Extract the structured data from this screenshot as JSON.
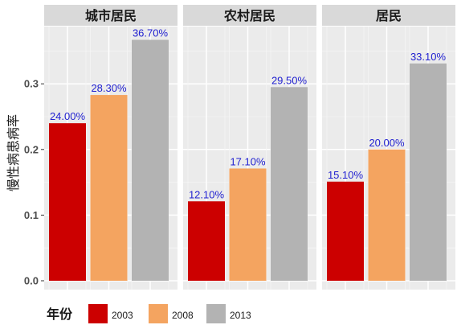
{
  "chart_data": {
    "type": "bar",
    "ylabel": "慢性病患病率",
    "ylim": [
      0,
      0.38
    ],
    "yticks": [
      "0.0",
      "0.1",
      "0.2",
      "0.3"
    ],
    "ytick_values": [
      0,
      0.1,
      0.2,
      0.3
    ],
    "grid": true,
    "legend": {
      "title": "年份",
      "position": "bottom-left"
    },
    "series_names": [
      "2003",
      "2008",
      "2013"
    ],
    "colors": {
      "2003": "#cc0000",
      "2008": "#f4a460",
      "2013": "#b3b3b3"
    },
    "panels": [
      {
        "name": "城市居民",
        "values": [
          0.24,
          0.283,
          0.367
        ],
        "labels": [
          "24.00%",
          "28.30%",
          "36.70%"
        ]
      },
      {
        "name": "农村居民",
        "values": [
          0.121,
          0.171,
          0.295
        ],
        "labels": [
          "12.10%",
          "17.10%",
          "29.50%"
        ]
      },
      {
        "name": "居民",
        "values": [
          0.151,
          0.2,
          0.331
        ],
        "labels": [
          "15.10%",
          "20.00%",
          "33.10%"
        ]
      }
    ]
  }
}
